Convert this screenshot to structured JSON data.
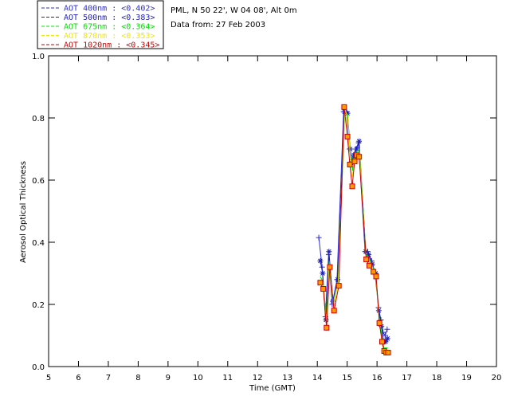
{
  "chart_data": {
    "type": "line",
    "title": "",
    "info": [
      "PML, N 50 22', W 04 08', Alt 0m",
      "Data from: 27 Feb 2003"
    ],
    "xlabel": "Time (GMT)",
    "ylabel": "Aerosol Optical Thickness",
    "xlim": [
      5,
      20
    ],
    "ylim": [
      0.0,
      1.0
    ],
    "xticks": [
      "5",
      "6",
      "7",
      "8",
      "9",
      "10",
      "11",
      "12",
      "13",
      "14",
      "15",
      "16",
      "17",
      "18",
      "19",
      "20"
    ],
    "yticks": [
      "0.0",
      "0.2",
      "0.4",
      "0.6",
      "0.8",
      "1.0"
    ],
    "grid": false,
    "legend_position": "top-left-outside",
    "series": [
      {
        "name": "AOT  400nm : <0.402>",
        "color": "#2b2bd8",
        "marker": "plus",
        "x": [
          14.05,
          14.16,
          14.27,
          14.38,
          14.5,
          14.66,
          14.88,
          14.98,
          15.08,
          15.14,
          15.21,
          15.29,
          15.38,
          15.6,
          15.69,
          15.82,
          15.93,
          16.05,
          16.13,
          16.2,
          16.27,
          16.34
        ],
        "y": [
          0.415,
          0.32,
          0.16,
          0.36,
          0.2,
          0.28,
          0.82,
          0.82,
          0.7,
          0.65,
          0.68,
          0.7,
          0.72,
          0.37,
          0.37,
          0.34,
          0.3,
          0.19,
          0.15,
          0.11,
          0.1,
          0.12
        ]
      },
      {
        "name": "AOT  500nm : <0.383>",
        "color": "#1e1eb8",
        "marker": "star",
        "x": [
          14.1,
          14.18,
          14.29,
          14.39,
          14.52,
          14.68,
          14.91,
          15.01,
          15.1,
          15.16,
          15.23,
          15.31,
          15.4,
          15.62,
          15.72,
          15.84,
          15.95,
          16.06,
          16.15,
          16.22,
          16.29,
          16.35
        ],
        "y": [
          0.34,
          0.3,
          0.15,
          0.37,
          0.21,
          0.28,
          0.82,
          0.815,
          0.7,
          0.66,
          0.68,
          0.7,
          0.725,
          0.37,
          0.36,
          0.33,
          0.3,
          0.18,
          0.13,
          0.08,
          0.08,
          0.09
        ]
      },
      {
        "name": "AOT  675nm : <0.364>",
        "color": "#00e000",
        "marker": "none",
        "x": [
          14.1,
          14.2,
          14.31,
          14.4,
          14.54,
          14.7,
          14.92,
          15.02,
          15.1,
          15.18,
          15.24,
          15.32,
          15.41,
          15.63,
          15.73,
          15.86,
          15.96,
          16.07,
          16.16,
          16.23,
          16.3,
          16.36
        ],
        "y": [
          0.29,
          0.27,
          0.14,
          0.34,
          0.2,
          0.27,
          0.82,
          0.81,
          0.69,
          0.63,
          0.67,
          0.69,
          0.7,
          0.36,
          0.35,
          0.32,
          0.29,
          0.16,
          0.1,
          0.06,
          0.06,
          0.06
        ]
      },
      {
        "name": "AOT  870nm : <0.353>",
        "color": "#f2e600",
        "marker": "none",
        "x": [
          14.1,
          14.2,
          14.31,
          14.4,
          14.54,
          14.7,
          14.92,
          15.02,
          15.1,
          15.18,
          15.24,
          15.32,
          15.41,
          15.63,
          15.73,
          15.86,
          15.96,
          16.07,
          16.16,
          16.23,
          16.3,
          16.36
        ],
        "y": [
          0.28,
          0.26,
          0.13,
          0.33,
          0.19,
          0.27,
          0.83,
          0.8,
          0.68,
          0.61,
          0.66,
          0.68,
          0.69,
          0.35,
          0.34,
          0.31,
          0.29,
          0.15,
          0.08,
          0.05,
          0.05,
          0.05
        ]
      },
      {
        "name": "AOT 1020nm : <0.345>",
        "color": "#cc0000",
        "marker": "square",
        "x": [
          14.1,
          14.2,
          14.31,
          14.42,
          14.56,
          14.72,
          14.9,
          15.01,
          15.09,
          15.17,
          15.25,
          15.32,
          15.4,
          15.64,
          15.74,
          15.88,
          15.97,
          16.08,
          16.17,
          16.24,
          16.31,
          16.37
        ],
        "y": [
          0.27,
          0.25,
          0.125,
          0.32,
          0.18,
          0.26,
          0.835,
          0.74,
          0.65,
          0.58,
          0.66,
          0.68,
          0.675,
          0.345,
          0.325,
          0.305,
          0.29,
          0.14,
          0.08,
          0.05,
          0.045,
          0.045
        ]
      }
    ]
  },
  "colors": {
    "axis": "#000000",
    "legend_border": "#000000",
    "marker_fill_square": "#ff9900"
  }
}
